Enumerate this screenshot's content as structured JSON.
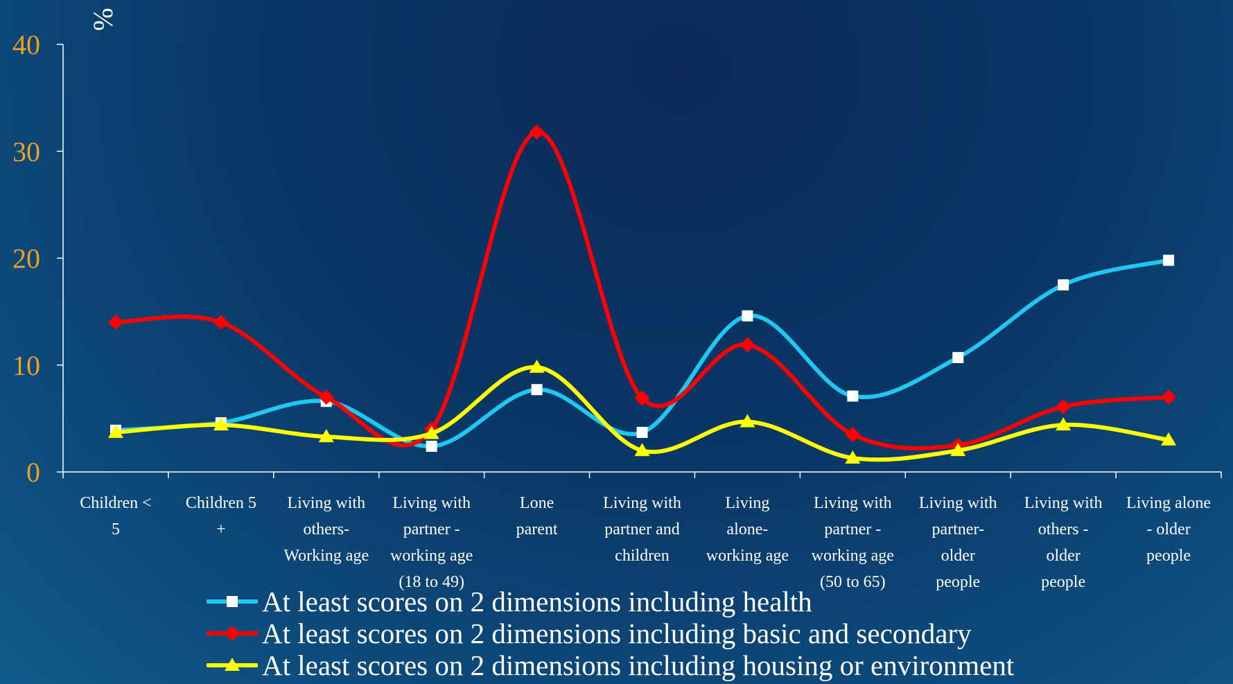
{
  "chart_data": {
    "type": "line",
    "ylabel": "%",
    "ylim": [
      0,
      40
    ],
    "yticks": [
      "0",
      "10",
      "20",
      "30",
      "40"
    ],
    "categories": [
      [
        "Children <",
        "5"
      ],
      [
        "Children 5",
        "+"
      ],
      [
        "Living with",
        "others-",
        "Working age"
      ],
      [
        "Living with",
        "partner -",
        "working age",
        "(18 to 49)"
      ],
      [
        "Lone",
        "parent"
      ],
      [
        "Living with",
        "partner and",
        "children"
      ],
      [
        "Living",
        "alone-",
        "working age"
      ],
      [
        "Living with",
        "partner -",
        "working age",
        "(50 to 65)"
      ],
      [
        "Living with",
        "partner-",
        "older",
        "people"
      ],
      [
        "Living with",
        "others -",
        "older",
        "people"
      ],
      [
        "Living alone",
        "- older",
        "people"
      ]
    ],
    "series": [
      {
        "name": "At least scores on 2 dimensions including health",
        "color": "#1ec8f0",
        "marker": "square",
        "marker_color": "#ffffff",
        "values": [
          3.9,
          4.6,
          6.6,
          2.4,
          7.7,
          3.7,
          14.6,
          7.1,
          10.7,
          17.5,
          19.8
        ]
      },
      {
        "name": "At least scores on 2 dimensions including basic and secondary",
        "color": "#ff0000",
        "marker": "diamond",
        "marker_color": "#ff0000",
        "values": [
          14.0,
          14.0,
          7.0,
          4.0,
          31.8,
          6.9,
          11.9,
          3.5,
          2.5,
          6.1,
          7.0
        ]
      },
      {
        "name": "At least scores on 2 dimensions including housing or environment",
        "color": "#ffff00",
        "marker": "triangle",
        "marker_color": "#ffff00",
        "values": [
          3.7,
          4.4,
          3.3,
          3.6,
          9.8,
          2.0,
          4.7,
          1.3,
          2.0,
          4.4,
          3.0
        ]
      }
    ],
    "tick_color": "#f0a020",
    "axis_color": "#ffffff",
    "grid": false,
    "legend_position": "bottom-left"
  }
}
